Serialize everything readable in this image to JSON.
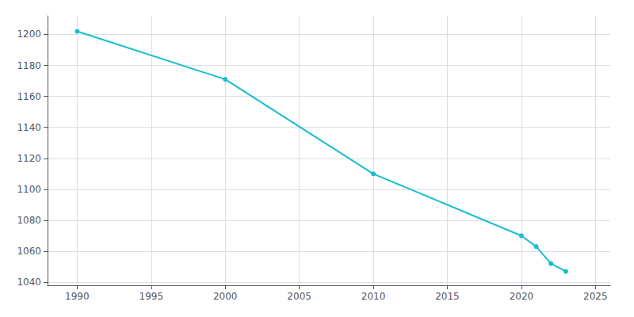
{
  "chart_data": {
    "type": "line",
    "x": [
      1990,
      2000,
      2010,
      2020,
      2021,
      2022,
      2023
    ],
    "values": [
      1202,
      1171,
      1110,
      1070,
      1063,
      1052,
      1047
    ],
    "color": "#17becf",
    "marker": "circle",
    "xlim": [
      1988,
      2026
    ],
    "xticks": [
      1990,
      1995,
      2000,
      2005,
      2010,
      2015,
      2020,
      2025
    ],
    "ylim": [
      1038,
      1212
    ],
    "yticks": [
      1040,
      1060,
      1080,
      1100,
      1120,
      1140,
      1160,
      1180,
      1200
    ],
    "grid": true
  }
}
